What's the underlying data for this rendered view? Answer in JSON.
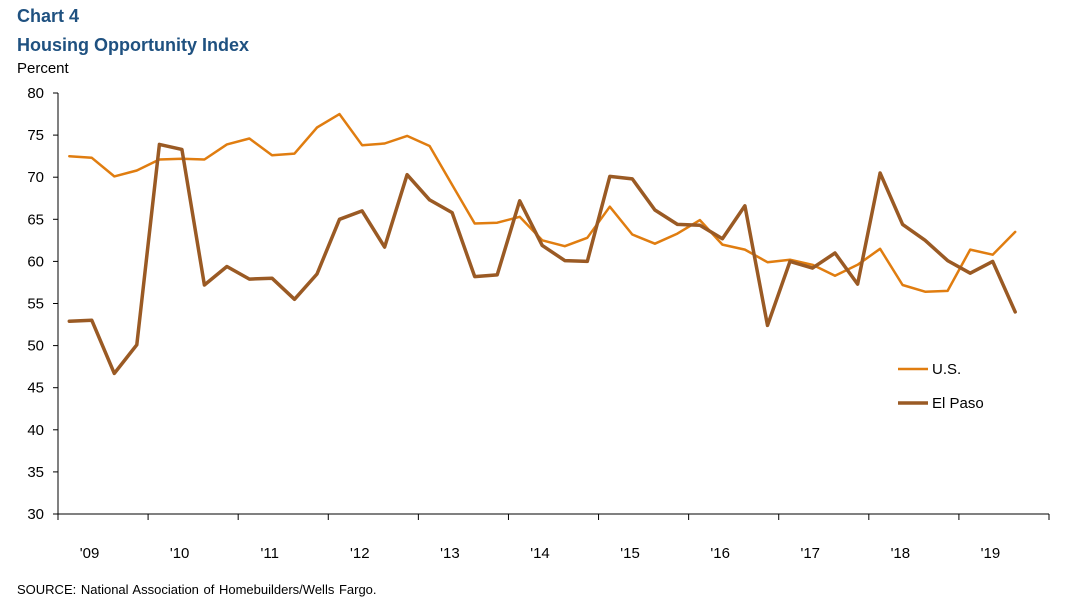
{
  "header": {
    "chart_number": "Chart 4",
    "title": "Housing Opportunity Index",
    "y_unit": "Percent"
  },
  "footer": {
    "source": "SOURCE:  National Association of Homebuilders/Wells  Fargo."
  },
  "chart_data": {
    "type": "line",
    "title": "Housing Opportunity Index",
    "ylabel": "Percent",
    "xlabel": "",
    "ylim": [
      30,
      80
    ],
    "y_ticks": [
      "30",
      "35",
      "40",
      "45",
      "50",
      "55",
      "60",
      "65",
      "70",
      "75",
      "80"
    ],
    "x_ticks": [
      "'09",
      "'10",
      "'11",
      "'12",
      "'13",
      "'14",
      "'15",
      "'16",
      "'17",
      "'18",
      "'19"
    ],
    "x": [
      "2009Q1",
      "2009Q2",
      "2009Q3",
      "2009Q4",
      "2010Q1",
      "2010Q2",
      "2010Q3",
      "2010Q4",
      "2011Q1",
      "2011Q2",
      "2011Q3",
      "2011Q4",
      "2012Q1",
      "2012Q2",
      "2012Q3",
      "2012Q4",
      "2013Q1",
      "2013Q2",
      "2013Q3",
      "2013Q4",
      "2014Q1",
      "2014Q2",
      "2014Q3",
      "2014Q4",
      "2015Q1",
      "2015Q2",
      "2015Q3",
      "2015Q4",
      "2016Q1",
      "2016Q2",
      "2016Q3",
      "2016Q4",
      "2017Q1",
      "2017Q2",
      "2017Q3",
      "2017Q4",
      "2018Q1",
      "2018Q2",
      "2018Q3",
      "2018Q4",
      "2019Q1",
      "2019Q2",
      "2019Q3",
      "2019Q4",
      "2020Q1"
    ],
    "series": [
      {
        "name": "U.S.",
        "color": "#e07d10",
        "values": [
          72.5,
          72.3,
          70.1,
          70.8,
          72.1,
          72.2,
          72.1,
          73.9,
          74.6,
          72.6,
          72.8,
          75.9,
          77.5,
          73.8,
          74.0,
          74.9,
          73.7,
          69.1,
          64.5,
          64.6,
          65.3,
          62.5,
          61.8,
          62.8,
          66.5,
          63.2,
          62.1,
          63.3,
          64.9,
          62.0,
          61.4,
          59.9,
          60.2,
          59.6,
          58.3,
          59.6,
          61.5,
          57.2,
          56.4,
          56.5,
          61.4,
          60.8,
          63.5,
          null,
          null
        ]
      },
      {
        "name": "El Paso",
        "color": "#9a5a24",
        "values": [
          52.9,
          53.0,
          46.7,
          50.1,
          73.9,
          73.3,
          57.2,
          59.4,
          57.9,
          58.0,
          55.5,
          58.5,
          65.0,
          66.0,
          61.7,
          70.3,
          67.3,
          65.8,
          58.2,
          58.4,
          67.2,
          61.9,
          60.1,
          60.0,
          70.1,
          69.8,
          66.1,
          64.4,
          64.3,
          62.7,
          66.6,
          52.4,
          60.0,
          59.2,
          61.0,
          57.3,
          70.5,
          64.4,
          62.5,
          60.1,
          58.6,
          60.0,
          54.0,
          null,
          null
        ]
      }
    ],
    "legend_position": "right",
    "grid": false
  }
}
